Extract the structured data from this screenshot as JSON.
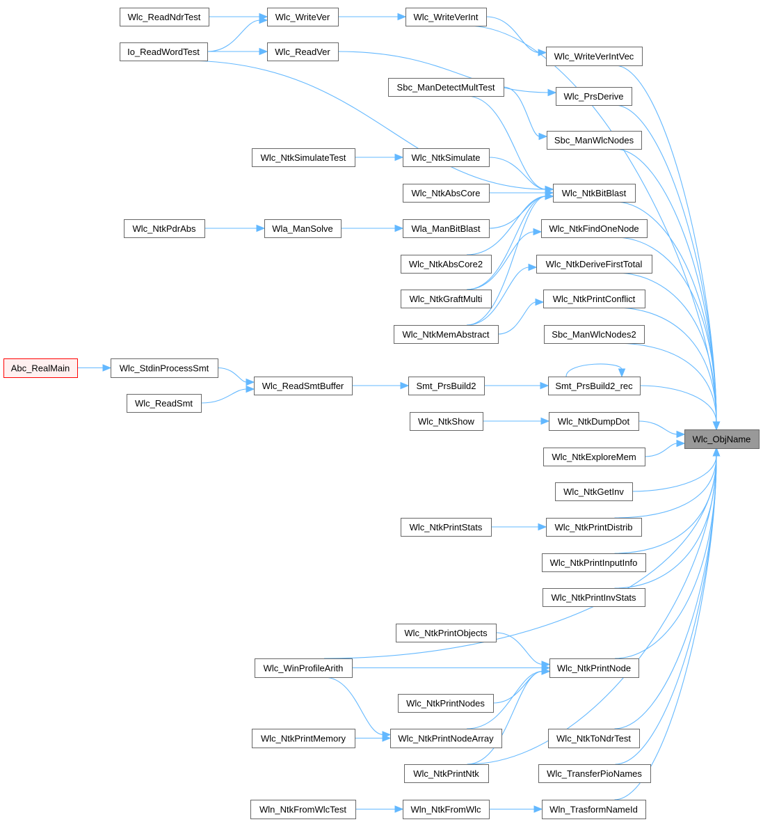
{
  "colors": {
    "edge": "#63b8ff",
    "node_border": "#666666",
    "root_fill": "#999999",
    "entry_border": "#ff0000",
    "entry_fill": "#fff0f0"
  },
  "root": "Wlc_ObjName",
  "nodes": [
    {
      "id": "Abc_RealMain",
      "label": "Abc_RealMain",
      "style": "entry"
    },
    {
      "id": "Wlc_ReadNdrTest",
      "label": "Wlc_ReadNdrTest"
    },
    {
      "id": "Io_ReadWordTest",
      "label": "Io_ReadWordTest"
    },
    {
      "id": "Wlc_NtkSimulateTest",
      "label": "Wlc_NtkSimulateTest"
    },
    {
      "id": "Wlc_NtkPdrAbs",
      "label": "Wlc_NtkPdrAbs"
    },
    {
      "id": "Wlc_StdinProcessSmt",
      "label": "Wlc_StdinProcessSmt"
    },
    {
      "id": "Wlc_ReadSmt",
      "label": "Wlc_ReadSmt"
    },
    {
      "id": "Wlc_WinProfileArith",
      "label": "Wlc_WinProfileArith"
    },
    {
      "id": "Wlc_NtkPrintMemory",
      "label": "Wlc_NtkPrintMemory"
    },
    {
      "id": "Wln_NtkFromWlcTest",
      "label": "Wln_NtkFromWlcTest"
    },
    {
      "id": "Wlc_WriteVer",
      "label": "Wlc_WriteVer"
    },
    {
      "id": "Wlc_ReadVer",
      "label": "Wlc_ReadVer"
    },
    {
      "id": "Wla_ManSolve",
      "label": "Wla_ManSolve"
    },
    {
      "id": "Wlc_ReadSmtBuffer",
      "label": "Wlc_ReadSmtBuffer"
    },
    {
      "id": "Wlc_WriteVerInt",
      "label": "Wlc_WriteVerInt"
    },
    {
      "id": "Sbc_ManDetectMultTest",
      "label": "Sbc_ManDetectMultTest"
    },
    {
      "id": "Wlc_NtkSimulate",
      "label": "Wlc_NtkSimulate"
    },
    {
      "id": "Wlc_NtkAbsCore",
      "label": "Wlc_NtkAbsCore"
    },
    {
      "id": "Wla_ManBitBlast",
      "label": "Wla_ManBitBlast"
    },
    {
      "id": "Wlc_NtkAbsCore2",
      "label": "Wlc_NtkAbsCore2"
    },
    {
      "id": "Wlc_NtkGraftMulti",
      "label": "Wlc_NtkGraftMulti"
    },
    {
      "id": "Wlc_NtkMemAbstract",
      "label": "Wlc_NtkMemAbstract"
    },
    {
      "id": "Smt_PrsBuild2",
      "label": "Smt_PrsBuild2"
    },
    {
      "id": "Wlc_NtkShow",
      "label": "Wlc_NtkShow"
    },
    {
      "id": "Wlc_NtkPrintStats",
      "label": "Wlc_NtkPrintStats"
    },
    {
      "id": "Wlc_NtkPrintObjects",
      "label": "Wlc_NtkPrintObjects"
    },
    {
      "id": "Wlc_NtkPrintNodes",
      "label": "Wlc_NtkPrintNodes"
    },
    {
      "id": "Wlc_NtkPrintNodeArray",
      "label": "Wlc_NtkPrintNodeArray"
    },
    {
      "id": "Wlc_NtkPrintNtk",
      "label": "Wlc_NtkPrintNtk"
    },
    {
      "id": "Wln_NtkFromWlc",
      "label": "Wln_NtkFromWlc"
    },
    {
      "id": "Wlc_WriteVerIntVec",
      "label": "Wlc_WriteVerIntVec"
    },
    {
      "id": "Wlc_PrsDerive",
      "label": "Wlc_PrsDerive"
    },
    {
      "id": "Sbc_ManWlcNodes",
      "label": "Sbc_ManWlcNodes"
    },
    {
      "id": "Wlc_NtkBitBlast",
      "label": "Wlc_NtkBitBlast"
    },
    {
      "id": "Wlc_NtkFindOneNode",
      "label": "Wlc_NtkFindOneNode"
    },
    {
      "id": "Wlc_NtkDeriveFirstTotal",
      "label": "Wlc_NtkDeriveFirstTotal"
    },
    {
      "id": "Wlc_NtkPrintConflict",
      "label": "Wlc_NtkPrintConflict"
    },
    {
      "id": "Sbc_ManWlcNodes2",
      "label": "Sbc_ManWlcNodes2"
    },
    {
      "id": "Smt_PrsBuild2_rec",
      "label": "Smt_PrsBuild2_rec"
    },
    {
      "id": "Wlc_NtkDumpDot",
      "label": "Wlc_NtkDumpDot"
    },
    {
      "id": "Wlc_NtkExploreMem",
      "label": "Wlc_NtkExploreMem"
    },
    {
      "id": "Wlc_NtkGetInv",
      "label": "Wlc_NtkGetInv"
    },
    {
      "id": "Wlc_NtkPrintDistrib",
      "label": "Wlc_NtkPrintDistrib"
    },
    {
      "id": "Wlc_NtkPrintInputInfo",
      "label": "Wlc_NtkPrintInputInfo"
    },
    {
      "id": "Wlc_NtkPrintInvStats",
      "label": "Wlc_NtkPrintInvStats"
    },
    {
      "id": "Wlc_NtkPrintNode",
      "label": "Wlc_NtkPrintNode"
    },
    {
      "id": "Wlc_NtkToNdrTest",
      "label": "Wlc_NtkToNdrTest"
    },
    {
      "id": "Wlc_TransferPioNames",
      "label": "Wlc_TransferPioNames"
    },
    {
      "id": "Wln_TrasformNameId",
      "label": "Wln_TrasformNameId"
    },
    {
      "id": "Wlc_ObjName",
      "label": "Wlc_ObjName",
      "style": "root"
    }
  ],
  "edges": [
    [
      "Wlc_ReadNdrTest",
      "Wlc_WriteVer"
    ],
    [
      "Io_ReadWordTest",
      "Wlc_WriteVer"
    ],
    [
      "Io_ReadWordTest",
      "Wlc_ReadVer"
    ],
    [
      "Io_ReadWordTest",
      "Wlc_NtkBitBlast"
    ],
    [
      "Wlc_WriteVer",
      "Wlc_WriteVerInt"
    ],
    [
      "Wlc_WriteVerInt",
      "Wlc_WriteVerIntVec"
    ],
    [
      "Wlc_WriteVerInt",
      "Wlc_ObjName"
    ],
    [
      "Wlc_ReadVer",
      "Wlc_PrsDerive"
    ],
    [
      "Sbc_ManDetectMultTest",
      "Sbc_ManWlcNodes"
    ],
    [
      "Sbc_ManDetectMultTest",
      "Wlc_NtkBitBlast"
    ],
    [
      "Wlc_NtkSimulateTest",
      "Wlc_NtkSimulate"
    ],
    [
      "Wlc_NtkSimulate",
      "Wlc_NtkBitBlast"
    ],
    [
      "Wlc_NtkAbsCore",
      "Wlc_NtkBitBlast"
    ],
    [
      "Wla_ManBitBlast",
      "Wlc_NtkBitBlast"
    ],
    [
      "Wlc_NtkPdrAbs",
      "Wla_ManSolve"
    ],
    [
      "Wla_ManSolve",
      "Wla_ManBitBlast"
    ],
    [
      "Wlc_NtkAbsCore2",
      "Wlc_NtkBitBlast"
    ],
    [
      "Wlc_NtkGraftMulti",
      "Wlc_NtkBitBlast"
    ],
    [
      "Wlc_NtkGraftMulti",
      "Wlc_NtkFindOneNode"
    ],
    [
      "Wlc_NtkMemAbstract",
      "Wlc_NtkBitBlast"
    ],
    [
      "Wlc_NtkMemAbstract",
      "Wlc_NtkDeriveFirstTotal"
    ],
    [
      "Wlc_NtkMemAbstract",
      "Wlc_NtkPrintConflict"
    ],
    [
      "Abc_RealMain",
      "Wlc_StdinProcessSmt"
    ],
    [
      "Wlc_StdinProcessSmt",
      "Wlc_ReadSmtBuffer"
    ],
    [
      "Wlc_ReadSmt",
      "Wlc_ReadSmtBuffer"
    ],
    [
      "Wlc_ReadSmtBuffer",
      "Smt_PrsBuild2"
    ],
    [
      "Smt_PrsBuild2",
      "Smt_PrsBuild2_rec"
    ],
    [
      "Smt_PrsBuild2_rec",
      "Smt_PrsBuild2_rec"
    ],
    [
      "Wlc_NtkShow",
      "Wlc_NtkDumpDot"
    ],
    [
      "Wlc_NtkPrintStats",
      "Wlc_NtkPrintDistrib"
    ],
    [
      "Wlc_WinProfileArith",
      "Wlc_ObjName"
    ],
    [
      "Wlc_WinProfileArith",
      "Wlc_NtkPrintNode"
    ],
    [
      "Wlc_WinProfileArith",
      "Wlc_NtkPrintNodeArray"
    ],
    [
      "Wlc_NtkPrintObjects",
      "Wlc_NtkPrintNode"
    ],
    [
      "Wlc_NtkPrintNodes",
      "Wlc_NtkPrintNode"
    ],
    [
      "Wlc_NtkPrintNodeArray",
      "Wlc_NtkPrintNode"
    ],
    [
      "Wlc_NtkPrintNtk",
      "Wlc_NtkPrintNode"
    ],
    [
      "Wlc_NtkPrintNtk",
      "Wlc_ObjName"
    ],
    [
      "Wlc_NtkPrintMemory",
      "Wlc_NtkPrintNodeArray"
    ],
    [
      "Wln_NtkFromWlcTest",
      "Wln_NtkFromWlc"
    ],
    [
      "Wln_NtkFromWlc",
      "Wln_TrasformNameId"
    ],
    [
      "Wlc_WriteVerIntVec",
      "Wlc_ObjName"
    ],
    [
      "Wlc_PrsDerive",
      "Wlc_ObjName"
    ],
    [
      "Sbc_ManWlcNodes",
      "Wlc_ObjName"
    ],
    [
      "Wlc_NtkBitBlast",
      "Wlc_ObjName"
    ],
    [
      "Wlc_NtkFindOneNode",
      "Wlc_ObjName"
    ],
    [
      "Wlc_NtkDeriveFirstTotal",
      "Wlc_ObjName"
    ],
    [
      "Wlc_NtkPrintConflict",
      "Wlc_ObjName"
    ],
    [
      "Sbc_ManWlcNodes2",
      "Wlc_ObjName"
    ],
    [
      "Smt_PrsBuild2_rec",
      "Wlc_ObjName"
    ],
    [
      "Wlc_NtkDumpDot",
      "Wlc_ObjName"
    ],
    [
      "Wlc_NtkExploreMem",
      "Wlc_ObjName"
    ],
    [
      "Wlc_NtkGetInv",
      "Wlc_ObjName"
    ],
    [
      "Wlc_NtkPrintDistrib",
      "Wlc_ObjName"
    ],
    [
      "Wlc_NtkPrintInputInfo",
      "Wlc_ObjName"
    ],
    [
      "Wlc_NtkPrintInvStats",
      "Wlc_ObjName"
    ],
    [
      "Wlc_NtkPrintNode",
      "Wlc_ObjName"
    ],
    [
      "Wlc_NtkToNdrTest",
      "Wlc_ObjName"
    ],
    [
      "Wlc_TransferPioNames",
      "Wlc_ObjName"
    ],
    [
      "Wln_TrasformNameId",
      "Wlc_ObjName"
    ]
  ]
}
